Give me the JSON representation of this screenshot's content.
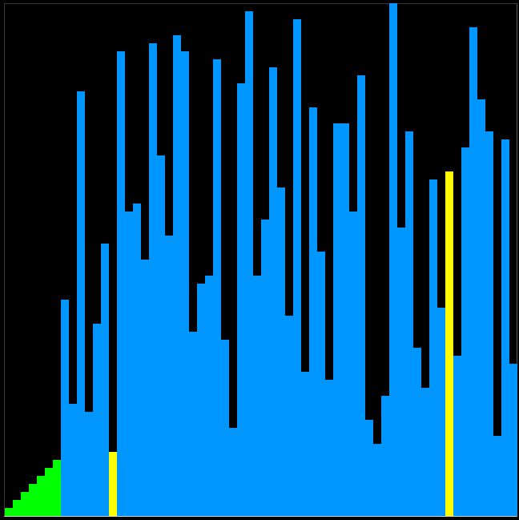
{
  "chart_data": {
    "type": "bar",
    "title": "",
    "xlabel": "",
    "ylabel": "",
    "grid": false,
    "legend": "none",
    "ylim": [
      0,
      64
    ],
    "colors": {
      "background": "#000000",
      "default": "#0096ff",
      "sorted": "#00ff00",
      "highlight": "#ffff00"
    },
    "values": [
      1,
      2,
      3,
      4,
      5,
      6,
      7,
      27,
      14,
      53,
      13,
      24,
      34,
      8,
      58,
      38,
      39,
      32,
      59,
      45,
      35,
      60,
      58,
      23,
      29,
      30,
      57,
      22,
      11,
      54,
      63,
      30,
      37,
      56,
      41,
      25,
      62,
      18,
      51,
      33,
      17,
      49,
      49,
      38,
      55,
      12,
      9,
      15,
      64,
      36,
      48,
      21,
      16,
      42,
      26,
      43,
      20,
      46,
      61,
      52,
      48,
      10,
      47,
      19
    ],
    "states": [
      "sorted",
      "sorted",
      "sorted",
      "sorted",
      "sorted",
      "sorted",
      "sorted",
      "default",
      "default",
      "default",
      "default",
      "default",
      "default",
      "highlight",
      "default",
      "default",
      "default",
      "default",
      "default",
      "default",
      "default",
      "default",
      "default",
      "default",
      "default",
      "default",
      "default",
      "default",
      "default",
      "default",
      "default",
      "default",
      "default",
      "default",
      "default",
      "default",
      "default",
      "default",
      "default",
      "default",
      "default",
      "default",
      "default",
      "default",
      "default",
      "default",
      "default",
      "default",
      "default",
      "default",
      "default",
      "default",
      "default",
      "default",
      "default",
      "highlight",
      "default",
      "default",
      "default",
      "default",
      "default",
      "default",
      "default",
      "default"
    ]
  }
}
